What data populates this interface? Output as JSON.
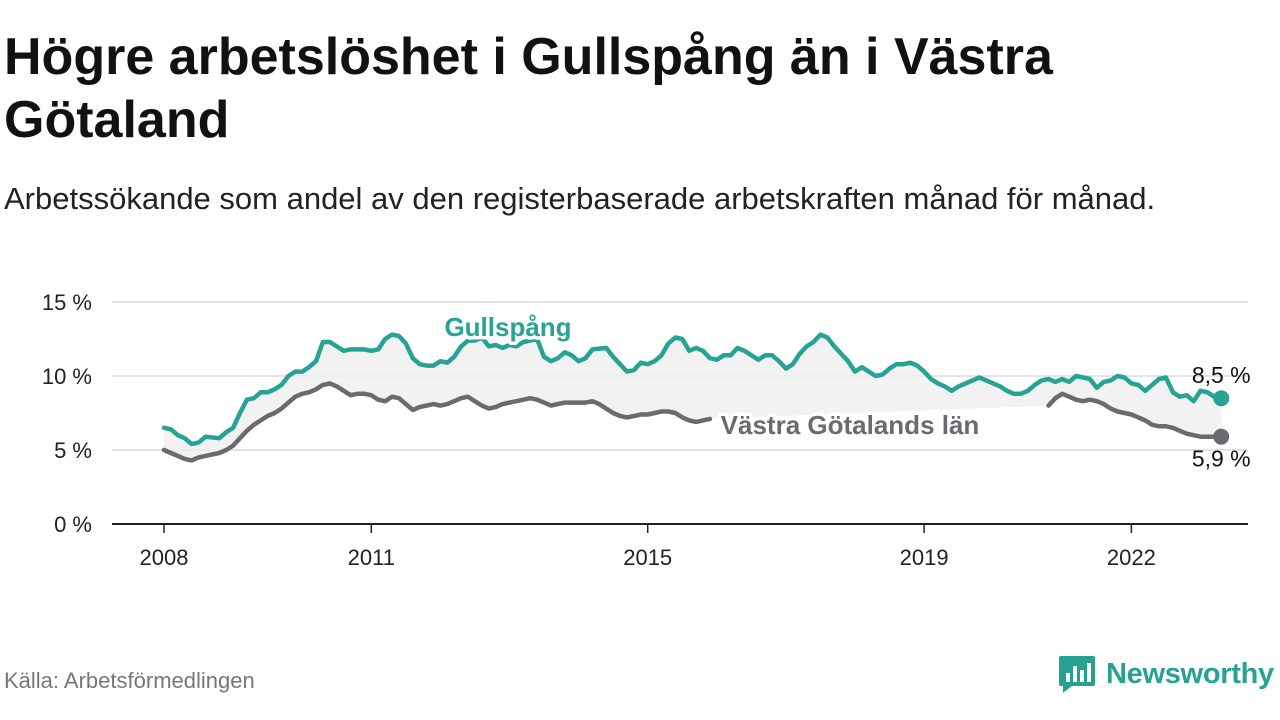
{
  "title": "Högre arbetslöshet i Gullspång än i Västra Götaland",
  "subtitle": "Arbetssökande som andel av den registerbaserade arbetskraften månad för månad.",
  "source": "Källa: Arbetsförmedlingen",
  "brand": {
    "name": "Newsworthy",
    "icon": "newsworthy-logo-icon",
    "color": "#27a191"
  },
  "chart_data": {
    "type": "line",
    "title": "Högre arbetslöshet i Gullspång än i Västra Götaland",
    "subtitle": "Arbetssökande som andel av den registerbaserade arbetskraften månad för månad.",
    "xlabel": "",
    "ylabel": "",
    "x_range": [
      2008,
      2023.3
    ],
    "ylim": [
      0,
      15
    ],
    "y_ticks": [
      0,
      5,
      10,
      15
    ],
    "y_tick_labels": [
      "0 %",
      "5 %",
      "10 %",
      "15 %"
    ],
    "x_ticks": [
      2008,
      2011,
      2015,
      2019,
      2022
    ],
    "x_tick_labels": [
      "2008",
      "2011",
      "2015",
      "2019",
      "2022"
    ],
    "grid": true,
    "series": [
      {
        "name": "Gullspång",
        "color": "#26a393",
        "end_label": "8,5 %",
        "points": [
          [
            2008.0,
            6.5
          ],
          [
            2008.1,
            6.4
          ],
          [
            2008.2,
            6.0
          ],
          [
            2008.3,
            5.8
          ],
          [
            2008.4,
            5.4
          ],
          [
            2008.5,
            5.5
          ],
          [
            2008.6,
            5.9
          ],
          [
            2008.8,
            5.8
          ],
          [
            2008.9,
            6.2
          ],
          [
            2009.0,
            6.5
          ],
          [
            2009.1,
            7.5
          ],
          [
            2009.2,
            8.4
          ],
          [
            2009.3,
            8.5
          ],
          [
            2009.4,
            8.9
          ],
          [
            2009.5,
            8.9
          ],
          [
            2009.6,
            9.1
          ],
          [
            2009.7,
            9.4
          ],
          [
            2009.8,
            10.0
          ],
          [
            2009.9,
            10.3
          ],
          [
            2010.0,
            10.3
          ],
          [
            2010.1,
            10.6
          ],
          [
            2010.2,
            11.0
          ],
          [
            2010.3,
            12.3
          ],
          [
            2010.4,
            12.3
          ],
          [
            2010.5,
            12.0
          ],
          [
            2010.6,
            11.7
          ],
          [
            2010.7,
            11.8
          ],
          [
            2010.8,
            11.8
          ],
          [
            2010.9,
            11.8
          ],
          [
            2011.0,
            11.7
          ],
          [
            2011.1,
            11.8
          ],
          [
            2011.2,
            12.5
          ],
          [
            2011.3,
            12.8
          ],
          [
            2011.4,
            12.7
          ],
          [
            2011.5,
            12.2
          ],
          [
            2011.6,
            11.2
          ],
          [
            2011.7,
            10.8
          ],
          [
            2011.8,
            10.7
          ],
          [
            2011.9,
            10.7
          ],
          [
            2012.0,
            11.0
          ],
          [
            2012.1,
            10.9
          ],
          [
            2012.2,
            11.3
          ],
          [
            2012.3,
            12.0
          ],
          [
            2012.4,
            12.4
          ],
          [
            2012.5,
            12.4
          ],
          [
            2012.6,
            12.6
          ],
          [
            2012.7,
            12.0
          ],
          [
            2012.8,
            12.1
          ],
          [
            2012.9,
            11.9
          ],
          [
            2013.0,
            12.1
          ],
          [
            2013.1,
            12.0
          ],
          [
            2013.2,
            12.3
          ],
          [
            2013.3,
            12.4
          ],
          [
            2013.4,
            12.5
          ],
          [
            2013.5,
            11.3
          ],
          [
            2013.6,
            11.0
          ],
          [
            2013.7,
            11.2
          ],
          [
            2013.8,
            11.6
          ],
          [
            2013.9,
            11.4
          ],
          [
            2014.0,
            11.0
          ],
          [
            2014.1,
            11.2
          ],
          [
            2014.2,
            11.8
          ],
          [
            2014.4,
            11.9
          ],
          [
            2014.5,
            11.3
          ],
          [
            2014.6,
            10.8
          ],
          [
            2014.7,
            10.3
          ],
          [
            2014.8,
            10.4
          ],
          [
            2014.9,
            10.9
          ],
          [
            2015.0,
            10.8
          ],
          [
            2015.1,
            11.0
          ],
          [
            2015.2,
            11.4
          ],
          [
            2015.3,
            12.2
          ],
          [
            2015.4,
            12.6
          ],
          [
            2015.5,
            12.5
          ],
          [
            2015.6,
            11.7
          ],
          [
            2015.7,
            11.9
          ],
          [
            2015.8,
            11.7
          ],
          [
            2015.9,
            11.2
          ],
          [
            2016.0,
            11.1
          ],
          [
            2016.1,
            11.4
          ],
          [
            2016.2,
            11.4
          ],
          [
            2016.3,
            11.9
          ],
          [
            2016.4,
            11.7
          ],
          [
            2016.5,
            11.4
          ],
          [
            2016.6,
            11.1
          ],
          [
            2016.7,
            11.4
          ],
          [
            2016.8,
            11.4
          ],
          [
            2016.9,
            11.0
          ],
          [
            2017.0,
            10.5
          ],
          [
            2017.1,
            10.8
          ],
          [
            2017.2,
            11.5
          ],
          [
            2017.3,
            12.0
          ],
          [
            2017.4,
            12.3
          ],
          [
            2017.5,
            12.8
          ],
          [
            2017.6,
            12.6
          ],
          [
            2017.7,
            12.0
          ],
          [
            2017.8,
            11.5
          ],
          [
            2017.9,
            11.0
          ],
          [
            2018.0,
            10.3
          ],
          [
            2018.1,
            10.6
          ],
          [
            2018.2,
            10.3
          ],
          [
            2018.3,
            10.0
          ],
          [
            2018.4,
            10.1
          ],
          [
            2018.5,
            10.5
          ],
          [
            2018.6,
            10.8
          ],
          [
            2018.7,
            10.8
          ],
          [
            2018.8,
            10.9
          ],
          [
            2018.9,
            10.7
          ],
          [
            2019.0,
            10.3
          ],
          [
            2019.1,
            9.8
          ],
          [
            2019.2,
            9.5
          ],
          [
            2019.3,
            9.3
          ],
          [
            2019.4,
            9.0
          ],
          [
            2019.5,
            9.3
          ],
          [
            2019.6,
            9.5
          ],
          [
            2019.7,
            9.7
          ],
          [
            2019.8,
            9.9
          ],
          [
            2019.9,
            9.7
          ],
          [
            2020.0,
            9.5
          ],
          [
            2020.1,
            9.3
          ],
          [
            2020.2,
            9.0
          ],
          [
            2020.3,
            8.8
          ],
          [
            2020.4,
            8.8
          ],
          [
            2020.5,
            9.0
          ],
          [
            2020.6,
            9.4
          ],
          [
            2020.7,
            9.7
          ],
          [
            2020.8,
            9.8
          ],
          [
            2020.9,
            9.6
          ],
          [
            2021.0,
            9.8
          ],
          [
            2021.1,
            9.6
          ],
          [
            2021.2,
            10.0
          ],
          [
            2021.3,
            9.9
          ],
          [
            2021.4,
            9.8
          ],
          [
            2021.5,
            9.2
          ],
          [
            2021.6,
            9.6
          ],
          [
            2021.7,
            9.7
          ],
          [
            2021.8,
            10.0
          ],
          [
            2021.9,
            9.9
          ],
          [
            2022.0,
            9.5
          ],
          [
            2022.1,
            9.4
          ],
          [
            2022.2,
            9.0
          ],
          [
            2022.3,
            9.4
          ],
          [
            2022.4,
            9.8
          ],
          [
            2022.5,
            9.9
          ],
          [
            2022.6,
            8.9
          ],
          [
            2022.7,
            8.6
          ],
          [
            2022.8,
            8.7
          ],
          [
            2022.9,
            8.3
          ],
          [
            2023.0,
            9.0
          ],
          [
            2023.1,
            8.9
          ],
          [
            2023.2,
            8.6
          ],
          [
            2023.3,
            8.5
          ]
        ]
      },
      {
        "name": "Västra Götalands län",
        "color": "#6b6b6f",
        "end_label": "5,9 %",
        "points": [
          [
            2008.0,
            5.0
          ],
          [
            2008.1,
            4.8
          ],
          [
            2008.2,
            4.6
          ],
          [
            2008.3,
            4.4
          ],
          [
            2008.4,
            4.3
          ],
          [
            2008.5,
            4.5
          ],
          [
            2008.6,
            4.6
          ],
          [
            2008.7,
            4.7
          ],
          [
            2008.8,
            4.8
          ],
          [
            2008.9,
            5.0
          ],
          [
            2009.0,
            5.3
          ],
          [
            2009.1,
            5.8
          ],
          [
            2009.2,
            6.3
          ],
          [
            2009.3,
            6.7
          ],
          [
            2009.4,
            7.0
          ],
          [
            2009.5,
            7.3
          ],
          [
            2009.6,
            7.5
          ],
          [
            2009.7,
            7.8
          ],
          [
            2009.8,
            8.2
          ],
          [
            2009.9,
            8.6
          ],
          [
            2010.0,
            8.8
          ],
          [
            2010.1,
            8.9
          ],
          [
            2010.2,
            9.1
          ],
          [
            2010.3,
            9.4
          ],
          [
            2010.4,
            9.5
          ],
          [
            2010.5,
            9.3
          ],
          [
            2010.6,
            9.0
          ],
          [
            2010.7,
            8.7
          ],
          [
            2010.8,
            8.8
          ],
          [
            2010.9,
            8.8
          ],
          [
            2011.0,
            8.7
          ],
          [
            2011.1,
            8.4
          ],
          [
            2011.2,
            8.3
          ],
          [
            2011.3,
            8.6
          ],
          [
            2011.4,
            8.5
          ],
          [
            2011.5,
            8.1
          ],
          [
            2011.6,
            7.7
          ],
          [
            2011.7,
            7.9
          ],
          [
            2011.8,
            8.0
          ],
          [
            2011.9,
            8.1
          ],
          [
            2012.0,
            8.0
          ],
          [
            2012.1,
            8.1
          ],
          [
            2012.2,
            8.3
          ],
          [
            2012.3,
            8.5
          ],
          [
            2012.4,
            8.6
          ],
          [
            2012.5,
            8.3
          ],
          [
            2012.6,
            8.0
          ],
          [
            2012.7,
            7.8
          ],
          [
            2012.8,
            7.9
          ],
          [
            2012.9,
            8.1
          ],
          [
            2013.0,
            8.2
          ],
          [
            2013.1,
            8.3
          ],
          [
            2013.2,
            8.4
          ],
          [
            2013.3,
            8.5
          ],
          [
            2013.4,
            8.4
          ],
          [
            2013.5,
            8.2
          ],
          [
            2013.6,
            8.0
          ],
          [
            2013.7,
            8.1
          ],
          [
            2013.8,
            8.2
          ],
          [
            2013.9,
            8.2
          ],
          [
            2014.0,
            8.2
          ],
          [
            2014.1,
            8.2
          ],
          [
            2014.2,
            8.3
          ],
          [
            2014.3,
            8.1
          ],
          [
            2014.4,
            7.8
          ],
          [
            2014.5,
            7.5
          ],
          [
            2014.6,
            7.3
          ],
          [
            2014.7,
            7.2
          ],
          [
            2014.8,
            7.3
          ],
          [
            2014.9,
            7.4
          ],
          [
            2015.0,
            7.4
          ],
          [
            2015.1,
            7.5
          ],
          [
            2015.2,
            7.6
          ],
          [
            2015.3,
            7.6
          ],
          [
            2015.4,
            7.5
          ],
          [
            2015.5,
            7.2
          ],
          [
            2015.6,
            7.0
          ],
          [
            2015.7,
            6.9
          ],
          [
            2015.8,
            7.0
          ],
          [
            2015.9,
            7.1
          ],
          [
            2020.8,
            8.0
          ],
          [
            2020.9,
            8.5
          ],
          [
            2021.0,
            8.8
          ],
          [
            2021.1,
            8.6
          ],
          [
            2021.2,
            8.4
          ],
          [
            2021.3,
            8.3
          ],
          [
            2021.4,
            8.4
          ],
          [
            2021.5,
            8.3
          ],
          [
            2021.6,
            8.1
          ],
          [
            2021.7,
            7.8
          ],
          [
            2021.8,
            7.6
          ],
          [
            2021.9,
            7.5
          ],
          [
            2022.0,
            7.4
          ],
          [
            2022.1,
            7.2
          ],
          [
            2022.2,
            7.0
          ],
          [
            2022.3,
            6.7
          ],
          [
            2022.4,
            6.6
          ],
          [
            2022.5,
            6.6
          ],
          [
            2022.6,
            6.5
          ],
          [
            2022.7,
            6.3
          ],
          [
            2022.8,
            6.1
          ],
          [
            2022.9,
            6.0
          ],
          [
            2023.0,
            5.9
          ],
          [
            2023.1,
            5.9
          ],
          [
            2023.2,
            5.9
          ],
          [
            2023.3,
            5.9
          ]
        ]
      }
    ]
  }
}
